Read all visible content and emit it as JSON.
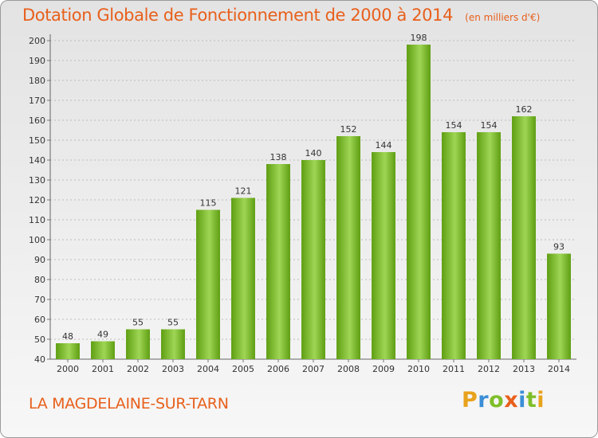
{
  "header": {
    "title": "Dotation Globale de Fonctionnement de 2000 à 2014",
    "unit": "(en milliers d'€)"
  },
  "footer": {
    "commune": "LA MAGDELAINE-SUR-TARN",
    "logo_letters": [
      "P",
      "r",
      "o",
      "x",
      "i",
      "t",
      "i"
    ],
    "logo_colors": [
      "#e8a21c",
      "#3c8fd6",
      "#7fbf2a",
      "#e8601c",
      "#3c8fd6",
      "#7fbf2a",
      "#e8a21c"
    ]
  },
  "colors": {
    "bar_light": "#9fd655",
    "bar_dark": "#5e9e12",
    "grid": "#bcbcbc",
    "text": "#333333",
    "accent": "#e8601c"
  },
  "chart_data": {
    "type": "bar",
    "categories": [
      "2000",
      "2001",
      "2002",
      "2003",
      "2004",
      "2005",
      "2006",
      "2007",
      "2008",
      "2009",
      "2010",
      "2011",
      "2012",
      "2013",
      "2014"
    ],
    "values": [
      48,
      49,
      55,
      55,
      115,
      121,
      138,
      140,
      152,
      144,
      198,
      154,
      154,
      162,
      93
    ],
    "title": "Dotation Globale de Fonctionnement de 2000 à 2014",
    "subtitle": "(en milliers d'€)",
    "xlabel": "",
    "ylabel": "",
    "ylim": [
      40,
      200
    ],
    "yticks": [
      40,
      50,
      60,
      70,
      80,
      90,
      100,
      110,
      120,
      130,
      140,
      150,
      160,
      170,
      180,
      190,
      200
    ],
    "grid": true,
    "legend": "none"
  }
}
